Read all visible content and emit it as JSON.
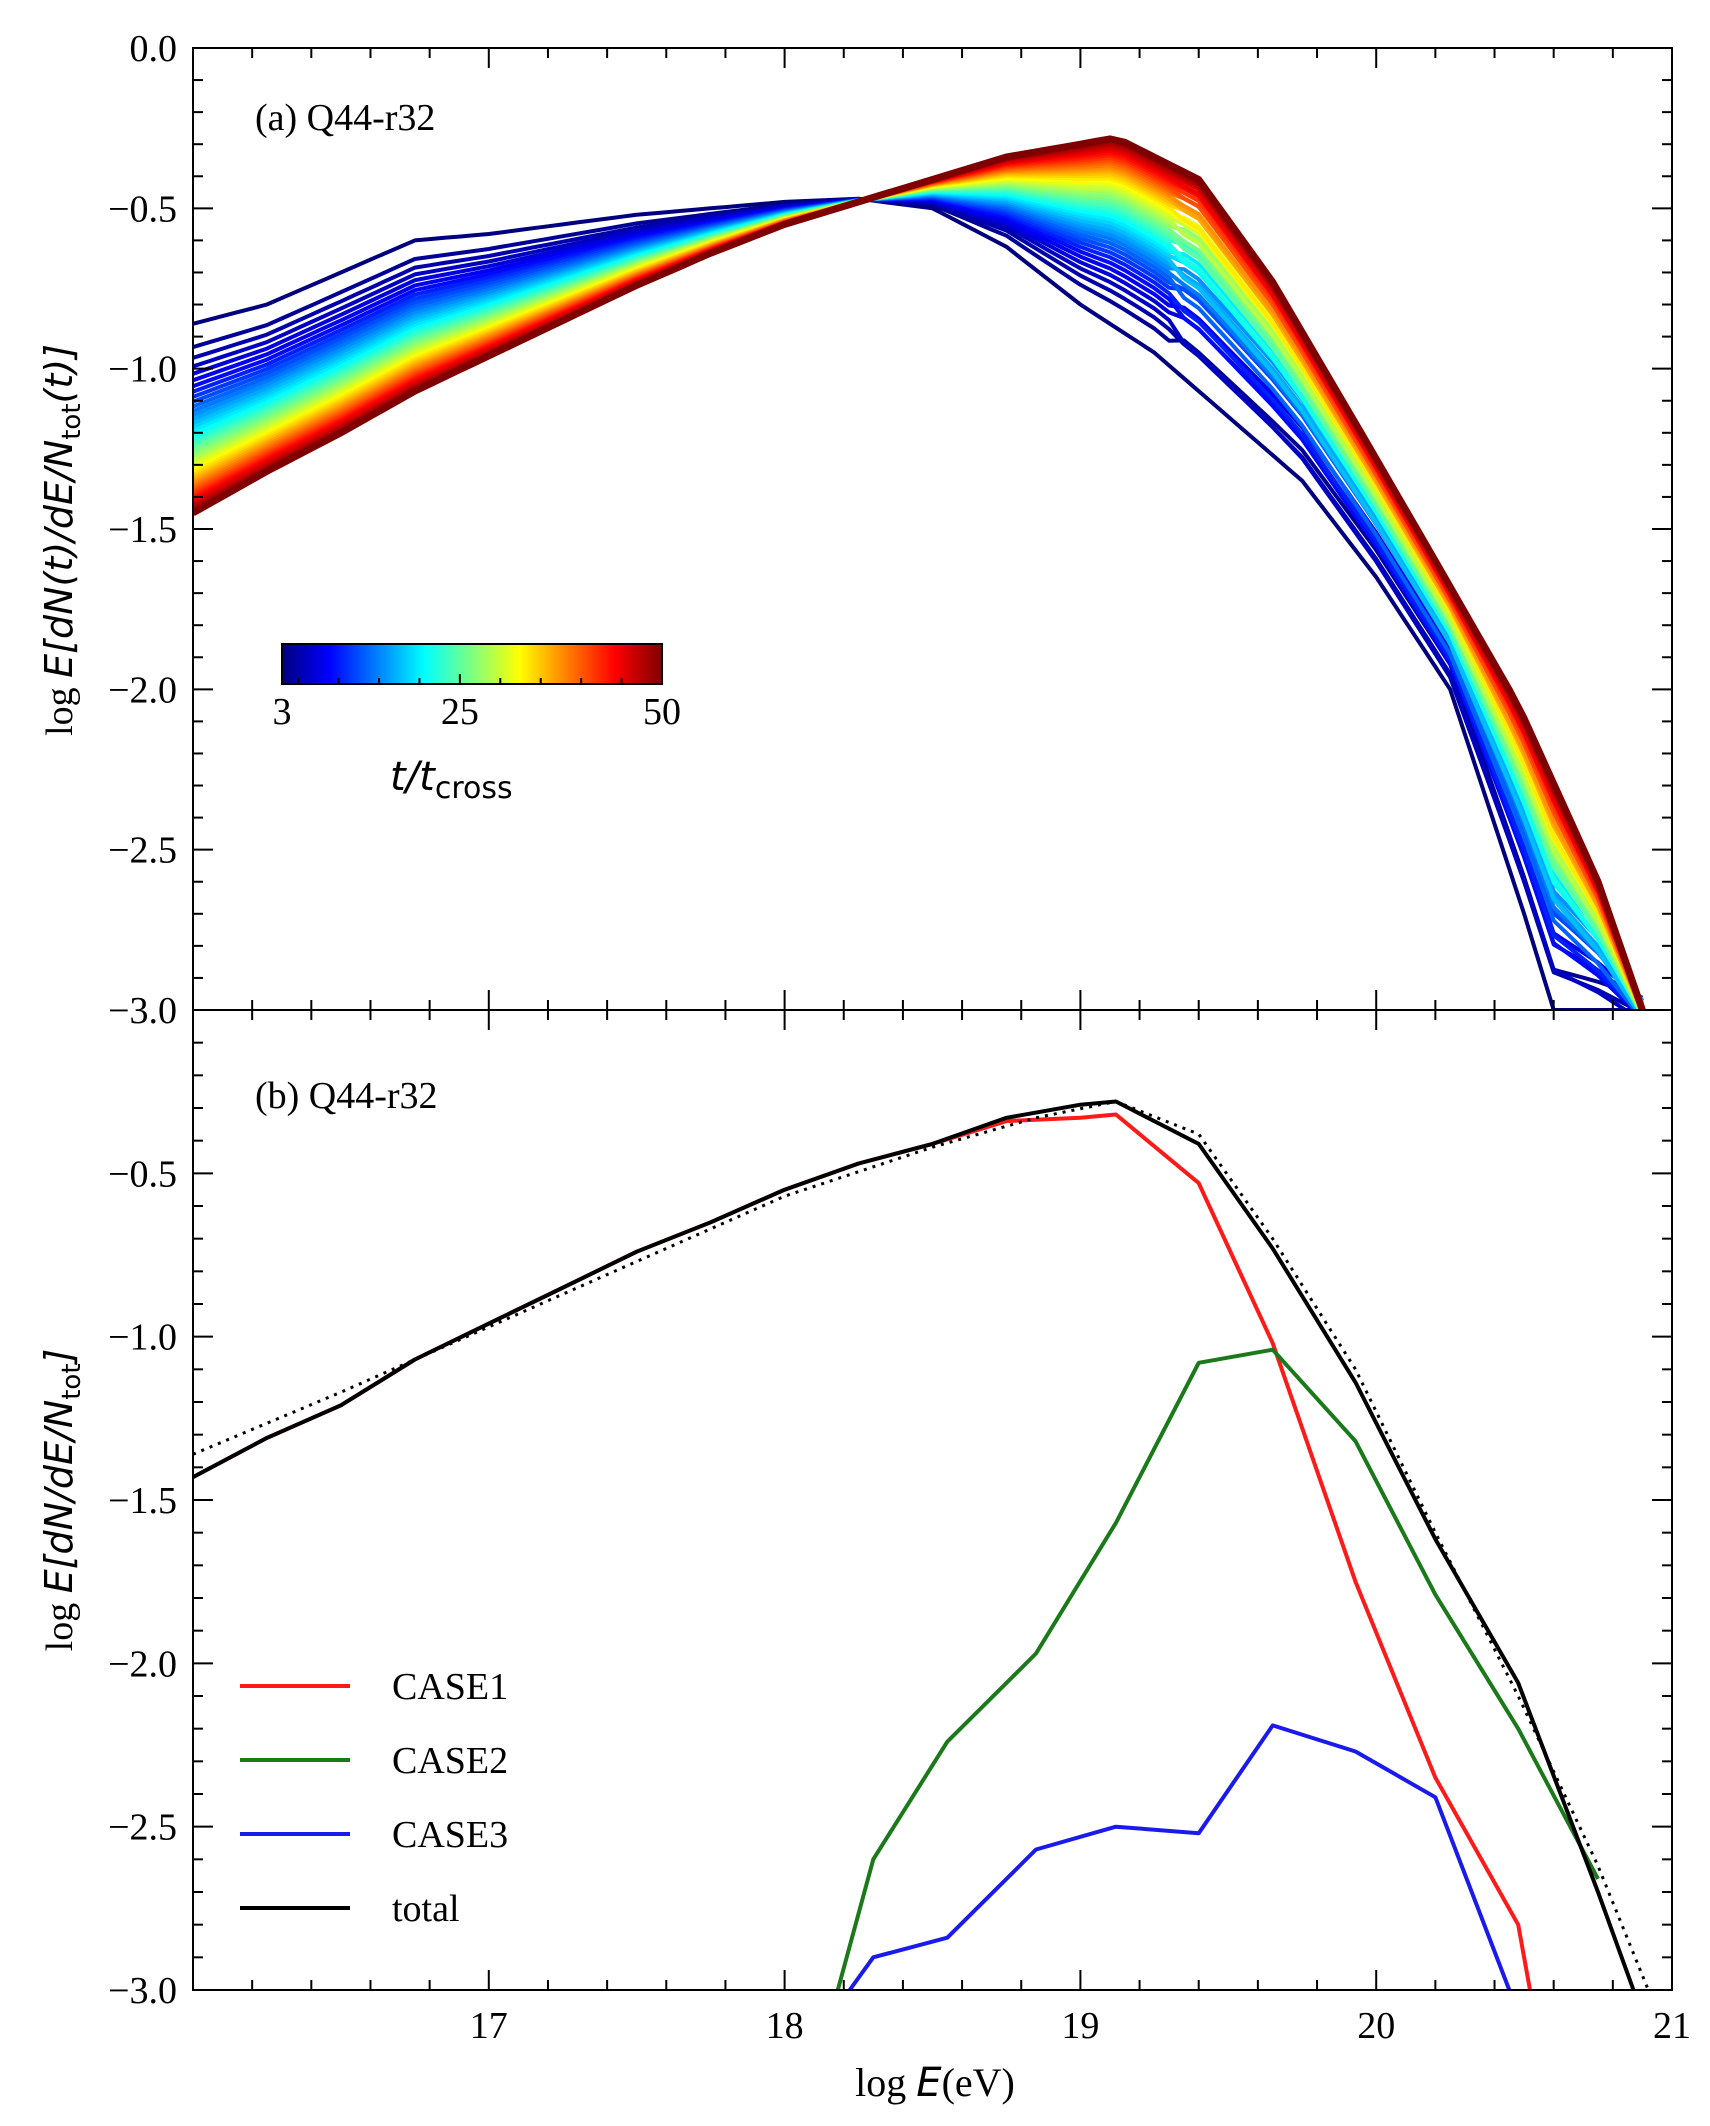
{
  "chart_data": [
    {
      "type": "line",
      "panel_label": "(a) Q44-r32",
      "xlabel": "",
      "ylabel": "log E[dN(t)/dE/N_tot(t)]",
      "ylabel_parts": {
        "prefix": "log ",
        "body": "E[dN(t)/dE/N",
        "sub": "tot",
        "suffix": "(t)]"
      },
      "xlim": [
        16,
        21
      ],
      "ylim": [
        -3.0,
        0.0
      ],
      "y_ticks": [
        0.0,
        -0.5,
        -1.0,
        -1.5,
        -2.0,
        -2.5,
        -3.0
      ],
      "y_tick_labels": [
        "0.0",
        "−0.5",
        "−1.0",
        "−1.5",
        "−2.0",
        "−2.5",
        "−3.0"
      ],
      "colorbar": {
        "label_main": "t/t",
        "label_sub": "cross",
        "min": 3,
        "max": 50,
        "ticks": [
          3,
          25,
          50
        ],
        "tick_labels": [
          "3",
          "25",
          "50"
        ],
        "colors": [
          "#00007f",
          "#0000ff",
          "#007fff",
          "#00ffff",
          "#7fff7f",
          "#ffff00",
          "#ff7f00",
          "#ff0000",
          "#7f0000"
        ]
      },
      "series_description": "Family of spectra for t/t_cross from 3 to 50, colored by time",
      "early_spectrum": {
        "x": [
          16.0,
          16.25,
          16.5,
          16.75,
          17.0,
          17.25,
          17.5,
          17.75,
          18.0,
          18.25,
          18.5,
          18.75,
          19.0,
          19.25,
          19.5,
          19.75,
          20.0,
          20.25,
          20.5,
          20.6
        ],
        "y": [
          -0.86,
          -0.8,
          -0.7,
          -0.6,
          -0.58,
          -0.55,
          -0.52,
          -0.5,
          -0.48,
          -0.47,
          -0.5,
          -0.62,
          -0.8,
          -0.95,
          -1.15,
          -1.35,
          -1.65,
          -2.0,
          -2.7,
          -3.0
        ]
      },
      "late_spectrum": {
        "x": [
          16.0,
          16.25,
          16.5,
          16.75,
          17.0,
          17.25,
          17.5,
          17.75,
          18.0,
          18.25,
          18.5,
          18.75,
          19.0,
          19.12,
          19.4,
          19.65,
          19.93,
          20.2,
          20.48,
          20.75,
          20.9
        ],
        "y": [
          -1.45,
          -1.32,
          -1.2,
          -1.07,
          -0.96,
          -0.85,
          -0.74,
          -0.64,
          -0.55,
          -0.48,
          -0.41,
          -0.34,
          -0.3,
          -0.28,
          -0.41,
          -0.73,
          -1.17,
          -1.6,
          -2.05,
          -2.6,
          -3.0
        ]
      }
    },
    {
      "type": "line",
      "panel_label": "(b) Q44-r32",
      "xlabel": "log E(eV)",
      "xlabel_parts": {
        "prefix": "log ",
        "italic": "E",
        "suffix": "(eV)"
      },
      "ylabel": "log E[dN/dE/N_tot]",
      "ylabel_parts": {
        "prefix": "log ",
        "body": "E[dN/dE/N",
        "sub": "tot",
        "suffix": "]"
      },
      "xlim": [
        16,
        21
      ],
      "ylim": [
        -3.0,
        0.0
      ],
      "x_ticks": [
        17,
        18,
        19,
        20,
        21
      ],
      "x_tick_labels": [
        "17",
        "18",
        "19",
        "20",
        "21"
      ],
      "y_ticks": [
        -0.5,
        -1.0,
        -1.5,
        -2.0,
        -2.5,
        -3.0
      ],
      "y_tick_labels": [
        "−0.5",
        "−1.0",
        "−1.5",
        "−2.0",
        "−2.5",
        "−3.0"
      ],
      "legend_position": "bottom-left",
      "series": [
        {
          "name": "CASE1",
          "color": "#ff1a1a",
          "style": "solid",
          "x": [
            16.0,
            16.25,
            16.5,
            16.75,
            17.0,
            17.25,
            17.5,
            17.75,
            18.0,
            18.25,
            18.5,
            18.75,
            19.0,
            19.12,
            19.4,
            19.65,
            19.93,
            20.2,
            20.48,
            20.52
          ],
          "y": [
            -1.43,
            -1.31,
            -1.21,
            -1.07,
            -0.96,
            -0.85,
            -0.74,
            -0.65,
            -0.55,
            -0.47,
            -0.41,
            -0.34,
            -0.33,
            -0.32,
            -0.53,
            -1.02,
            -1.75,
            -2.35,
            -2.8,
            -3.0
          ]
        },
        {
          "name": "CASE2",
          "color": "#1a7a1a",
          "style": "solid",
          "x": [
            18.18,
            18.3,
            18.55,
            18.85,
            19.12,
            19.4,
            19.65,
            19.93,
            20.2,
            20.48,
            20.75
          ],
          "y": [
            -3.0,
            -2.6,
            -2.24,
            -1.97,
            -1.57,
            -1.08,
            -1.04,
            -1.32,
            -1.79,
            -2.2,
            -2.66
          ]
        },
        {
          "name": "CASE3",
          "color": "#1a1aee",
          "style": "solid",
          "x": [
            18.22,
            18.3,
            18.55,
            18.85,
            19.12,
            19.4,
            19.65,
            19.93,
            20.2,
            20.45
          ],
          "y": [
            -3.0,
            -2.9,
            -2.84,
            -2.57,
            -2.5,
            -2.52,
            -2.19,
            -2.27,
            -2.41,
            -3.0
          ]
        },
        {
          "name": "total",
          "color": "#000000",
          "style": "solid",
          "x": [
            16.0,
            16.25,
            16.5,
            16.75,
            17.0,
            17.25,
            17.5,
            17.75,
            18.0,
            18.25,
            18.5,
            18.75,
            19.0,
            19.12,
            19.4,
            19.65,
            19.93,
            20.2,
            20.48,
            20.75,
            20.87
          ],
          "y": [
            -1.43,
            -1.31,
            -1.21,
            -1.07,
            -0.96,
            -0.85,
            -0.74,
            -0.65,
            -0.55,
            -0.47,
            -0.41,
            -0.33,
            -0.29,
            -0.28,
            -0.41,
            -0.73,
            -1.14,
            -1.62,
            -2.06,
            -2.7,
            -3.0
          ]
        },
        {
          "name": "",
          "color": "#000000",
          "style": "dotted",
          "x": [
            16.0,
            16.5,
            17.0,
            17.5,
            18.0,
            18.5,
            18.85,
            19.12,
            19.4,
            19.65,
            19.93,
            20.2,
            20.48,
            20.75,
            20.92
          ],
          "y": [
            -1.36,
            -1.17,
            -0.97,
            -0.77,
            -0.57,
            -0.42,
            -0.33,
            -0.28,
            -0.38,
            -0.7,
            -1.1,
            -1.6,
            -2.1,
            -2.62,
            -3.0
          ]
        }
      ]
    }
  ]
}
